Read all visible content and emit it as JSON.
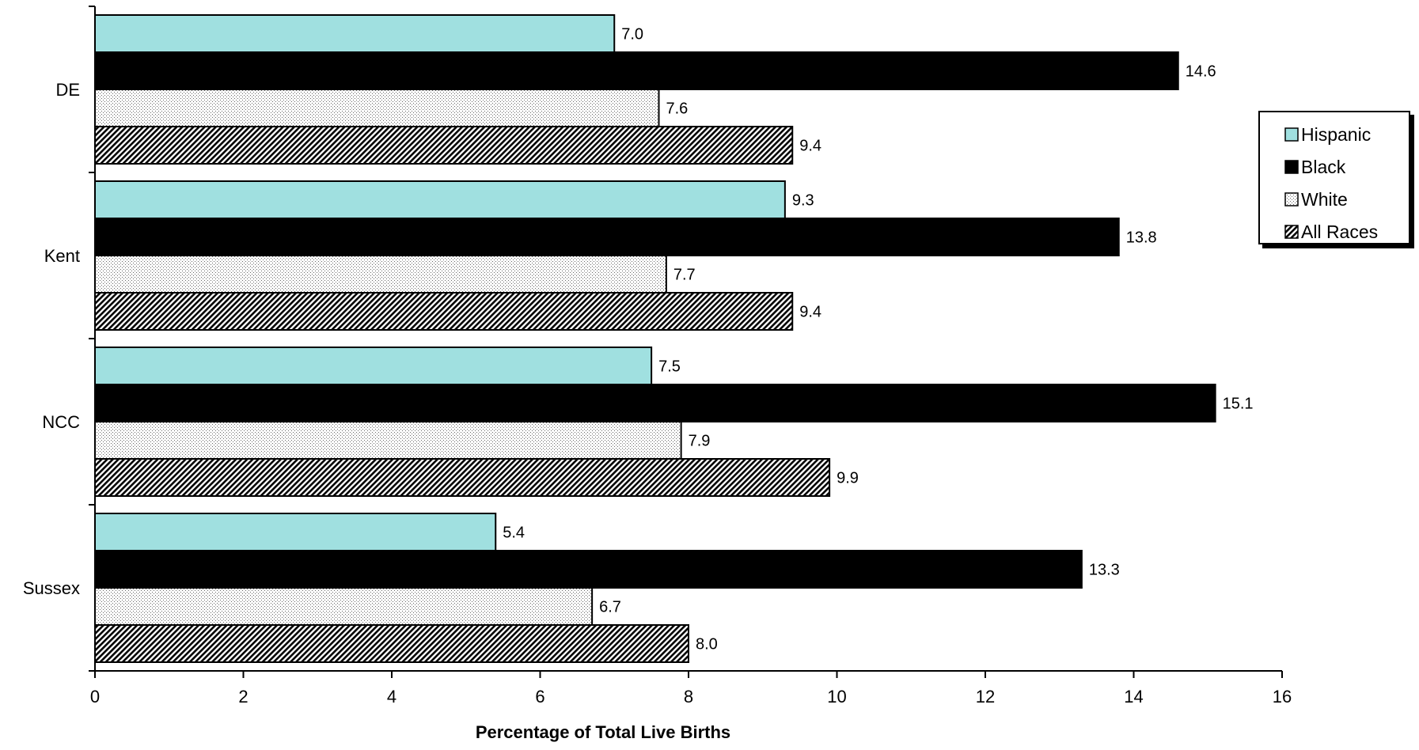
{
  "chart_data": {
    "type": "bar",
    "orientation": "horizontal",
    "categories": [
      "DE",
      "Kent",
      "NCC",
      "Sussex"
    ],
    "series": [
      {
        "name": "Hispanic",
        "values": [
          7.0,
          9.3,
          7.5,
          5.4
        ],
        "color": "#a0e0e0",
        "pattern": "solid"
      },
      {
        "name": "Black",
        "values": [
          14.6,
          13.8,
          15.1,
          13.3
        ],
        "color": "#000000",
        "pattern": "solid"
      },
      {
        "name": "White",
        "values": [
          7.6,
          7.7,
          7.9,
          6.7
        ],
        "color": "#ffffff",
        "pattern": "dots"
      },
      {
        "name": "All Races",
        "values": [
          9.4,
          9.4,
          9.9,
          8.0
        ],
        "color": "#ffffff",
        "pattern": "diagonal-hatch"
      }
    ],
    "data_labels": [
      [
        "7.0",
        "14.6",
        "7.6",
        "9.4"
      ],
      [
        "9.3",
        "13.8",
        "7.7",
        "9.4"
      ],
      [
        "7.5",
        "15.1",
        "7.9",
        "9.9"
      ],
      [
        "5.4",
        "13.3",
        "6.7",
        "8.0"
      ]
    ],
    "xlabel": "Percentage of Total Live Births",
    "ylabel": "",
    "title": "",
    "xlim": [
      0,
      16
    ],
    "xticks": [
      0,
      2,
      4,
      6,
      8,
      10,
      12,
      14,
      16
    ],
    "grid": false,
    "legend_position": "right"
  }
}
